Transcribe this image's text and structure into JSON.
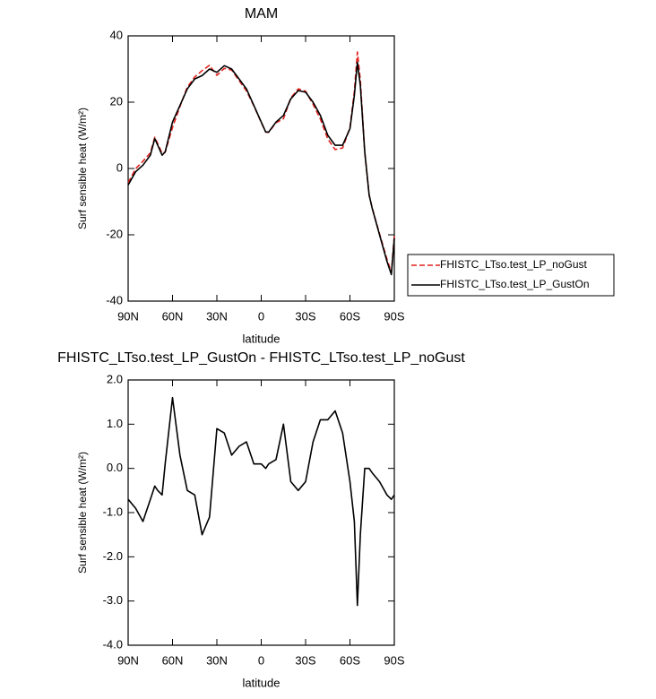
{
  "chart_data": [
    {
      "type": "line",
      "title": "MAM",
      "xlabel": "latitude",
      "ylabel": "Surf sensible heat (W/m²)",
      "x": [
        90,
        85,
        80,
        75,
        72,
        70,
        67,
        65,
        60,
        55,
        50,
        45,
        40,
        35,
        30,
        25,
        20,
        15,
        10,
        5,
        0,
        -3,
        -5,
        -10,
        -15,
        -20,
        -25,
        -30,
        -35,
        -40,
        -45,
        -50,
        -55,
        -60,
        -63,
        -65,
        -67,
        -70,
        -73,
        -75,
        -80,
        -85,
        -88,
        -90
      ],
      "xlim": [
        90,
        -90
      ],
      "xticks": [
        {
          "value": 90,
          "label": "90N"
        },
        {
          "value": 60,
          "label": "60N"
        },
        {
          "value": 30,
          "label": "30N"
        },
        0,
        {
          "value": -30,
          "label": "30S"
        },
        {
          "value": -60,
          "label": "60S"
        },
        {
          "value": -90,
          "label": "90S"
        }
      ],
      "ylim": [
        -40,
        40
      ],
      "yticks": [
        -40,
        -20,
        0,
        20,
        40
      ],
      "legend": "right",
      "series": [
        {
          "name": "FHISTC_LTso.test_LP_noGust",
          "color": "#e0201b",
          "dashed": true,
          "values": [
            -4.3,
            -0.1,
            2.2,
            4.7,
            9.4,
            7.5,
            4.6,
            4.9,
            12.4,
            18.7,
            24.5,
            27.6,
            29.5,
            31.1,
            28.1,
            30.2,
            29.7,
            26.5,
            23.4,
            18.9,
            13.9,
            11,
            10.9,
            13.8,
            15,
            21.3,
            24,
            23.3,
            19.4,
            14.9,
            8.9,
            5.7,
            6.2,
            12.3,
            23.2,
            35.1,
            26.5,
            5,
            -8,
            -11.9,
            -19.7,
            -27.4,
            -31.3,
            -20.4
          ]
        },
        {
          "name": "FHISTC_LTso.test_LP_GustOn",
          "color": "#000000",
          "dashed": false,
          "values": [
            -5,
            -1,
            1,
            4,
            9,
            7,
            4,
            5,
            14,
            19,
            24,
            27,
            28,
            30,
            29,
            31,
            30,
            27,
            24,
            19,
            14,
            11,
            11,
            14,
            16,
            21,
            23.5,
            23,
            20,
            16,
            10,
            7,
            7,
            12,
            22,
            32,
            25,
            5,
            -8,
            -12,
            -20,
            -28,
            -32,
            -21
          ]
        }
      ]
    },
    {
      "type": "line",
      "title": "FHISTC_LTso.test_LP_GustOn - FHISTC_LTso.test_LP_noGust",
      "xlabel": "latitude",
      "ylabel": "Surf sensible heat (W/m²)",
      "x": [
        90,
        85,
        80,
        75,
        72,
        70,
        67,
        65,
        60,
        55,
        50,
        45,
        40,
        35,
        30,
        25,
        20,
        15,
        10,
        5,
        0,
        -3,
        -5,
        -10,
        -15,
        -20,
        -25,
        -30,
        -35,
        -40,
        -45,
        -50,
        -55,
        -60,
        -63,
        -65,
        -67,
        -70,
        -73,
        -75,
        -80,
        -85,
        -88,
        -90
      ],
      "xlim": [
        90,
        -90
      ],
      "xticks": [
        {
          "value": 90,
          "label": "90N"
        },
        {
          "value": 60,
          "label": "60N"
        },
        {
          "value": 30,
          "label": "30N"
        },
        0,
        {
          "value": -30,
          "label": "30S"
        },
        {
          "value": -60,
          "label": "60S"
        },
        {
          "value": -90,
          "label": "90S"
        }
      ],
      "ylim": [
        -4,
        2
      ],
      "yticks": [
        {
          "value": -4,
          "label": "-4.0"
        },
        {
          "value": -3,
          "label": "-3.0"
        },
        {
          "value": -2,
          "label": "-2.0"
        },
        {
          "value": -1,
          "label": "-1.0"
        },
        {
          "value": 0,
          "label": "0.0"
        },
        {
          "value": 1,
          "label": "1.0"
        },
        {
          "value": 2,
          "label": "2.0"
        }
      ],
      "series": [
        {
          "color": "#000000",
          "dashed": false,
          "values": [
            -0.7,
            -0.9,
            -1.2,
            -0.7,
            -0.4,
            -0.5,
            -0.6,
            0.1,
            1.6,
            0.3,
            -0.5,
            -0.6,
            -1.5,
            -1.1,
            0.9,
            0.8,
            0.3,
            0.5,
            0.6,
            0.1,
            0.1,
            0,
            0.1,
            0.2,
            1.0,
            -0.3,
            -0.5,
            -0.3,
            0.6,
            1.1,
            1.1,
            1.3,
            0.8,
            -0.3,
            -1.2,
            -3.1,
            -1.5,
            0,
            0,
            -0.1,
            -0.3,
            -0.6,
            -0.7,
            -0.6
          ]
        }
      ]
    }
  ]
}
